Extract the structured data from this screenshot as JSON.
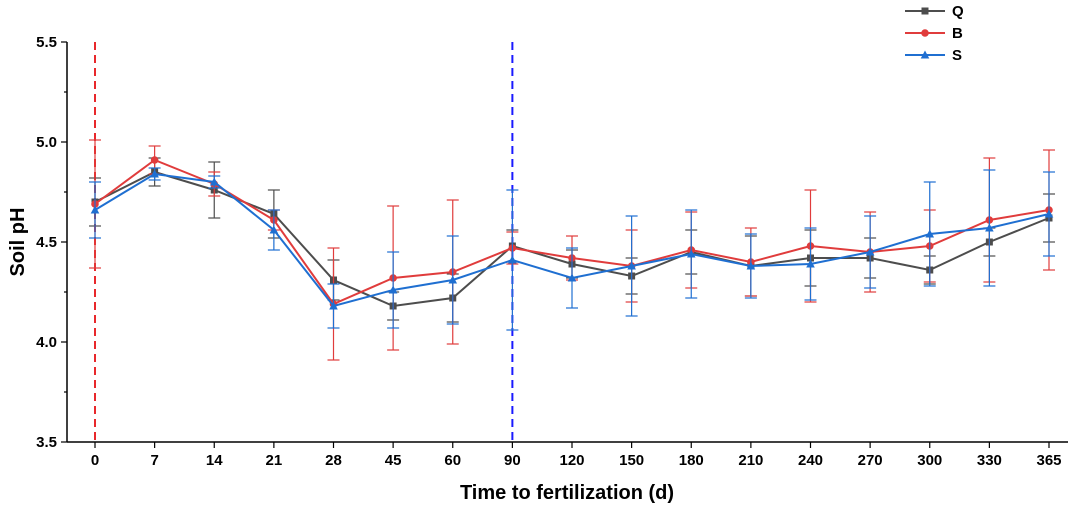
{
  "chart_data": {
    "type": "line",
    "title": "",
    "xlabel": "Time to fertilization (d)",
    "ylabel": "Soil pH",
    "categories": [
      "0",
      "7",
      "14",
      "21",
      "28",
      "45",
      "60",
      "90",
      "120",
      "150",
      "180",
      "210",
      "240",
      "270",
      "300",
      "330",
      "365"
    ],
    "ylim": [
      3.5,
      5.5
    ],
    "yticks": [
      "3.5",
      "4.0",
      "4.5",
      "5.0",
      "5.5"
    ],
    "grid": false,
    "legend_position": "top-right",
    "reference_lines": [
      {
        "at_category": "0",
        "color": "#e8282b",
        "style": "dashed"
      },
      {
        "at_category": "90",
        "color": "#1a1aff",
        "style": "dashed"
      }
    ],
    "series": [
      {
        "name": "Q",
        "color": "#4d4d4d",
        "marker": "square",
        "values": [
          4.7,
          4.85,
          4.76,
          4.64,
          4.31,
          4.18,
          4.22,
          4.48,
          4.39,
          4.33,
          4.45,
          4.38,
          4.42,
          4.42,
          4.36,
          4.5,
          4.62
        ],
        "errors": [
          0.12,
          0.07,
          0.14,
          0.12,
          0.1,
          0.07,
          0.12,
          0.08,
          0.07,
          0.09,
          0.11,
          0.15,
          0.14,
          0.1,
          0.07,
          0.07,
          0.12
        ]
      },
      {
        "name": "B",
        "color": "#e03c3c",
        "marker": "circle",
        "values": [
          4.69,
          4.91,
          4.79,
          4.61,
          4.19,
          4.32,
          4.35,
          4.47,
          4.42,
          4.38,
          4.46,
          4.4,
          4.48,
          4.45,
          4.48,
          4.61,
          4.66
        ],
        "errors": [
          0.32,
          0.07,
          0.06,
          0.05,
          0.28,
          0.36,
          0.36,
          0.08,
          0.11,
          0.18,
          0.19,
          0.17,
          0.28,
          0.2,
          0.18,
          0.31,
          0.3
        ]
      },
      {
        "name": "S",
        "color": "#1f6fd1",
        "marker": "triangle",
        "values": [
          4.66,
          4.84,
          4.8,
          4.56,
          4.18,
          4.26,
          4.31,
          4.41,
          4.32,
          4.38,
          4.44,
          4.38,
          4.39,
          4.45,
          4.54,
          4.57,
          4.64
        ],
        "errors": [
          0.14,
          0.03,
          0.03,
          0.1,
          0.11,
          0.19,
          0.22,
          0.35,
          0.15,
          0.25,
          0.22,
          0.16,
          0.18,
          0.18,
          0.26,
          0.29,
          0.21
        ]
      }
    ]
  }
}
